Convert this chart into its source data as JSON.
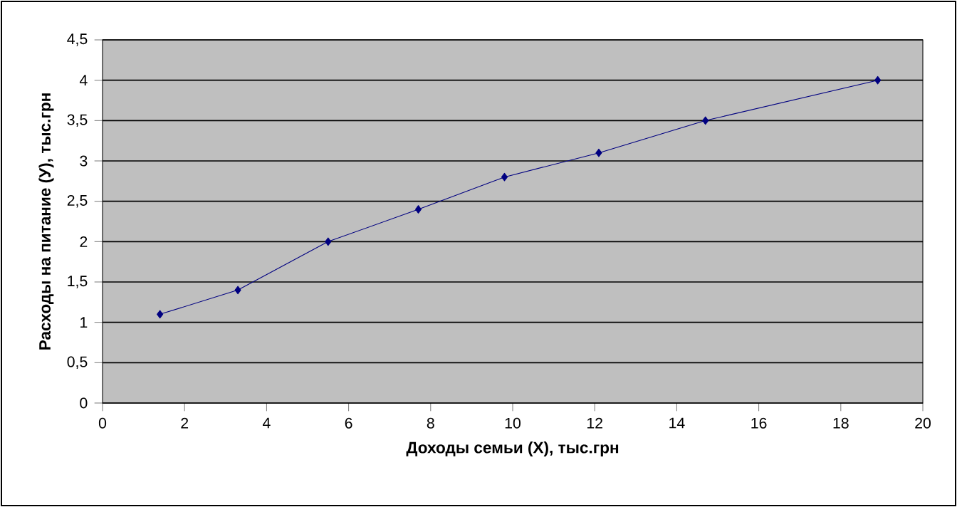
{
  "chart_data": {
    "type": "line",
    "xlabel": "Доходы семьи (X), тыс.грн",
    "ylabel": "Расходы на питание (У), тыс.грн",
    "x": [
      1.4,
      3.3,
      5.5,
      7.7,
      9.8,
      12.1,
      14.7,
      18.9
    ],
    "series": [
      {
        "color": "#000080",
        "values": [
          1.1,
          1.4,
          2.0,
          2.4,
          2.8,
          3.1,
          3.5,
          4.0
        ]
      }
    ],
    "xlim": [
      0,
      20
    ],
    "xticks": [
      0,
      2,
      4,
      6,
      8,
      10,
      12,
      14,
      16,
      18,
      20
    ],
    "ylim": [
      0,
      4.5
    ],
    "yticks": [
      0,
      {
        "value": 0.5,
        "label": "0,5"
      },
      1,
      {
        "value": 1.5,
        "label": "1,5"
      },
      2,
      {
        "value": 2.5,
        "label": "2,5"
      },
      3,
      {
        "value": 3.5,
        "label": "3,5"
      },
      4,
      {
        "value": 4.5,
        "label": "4,5"
      }
    ],
    "grid": "y",
    "marker": "diamond",
    "line_style": "solid"
  }
}
